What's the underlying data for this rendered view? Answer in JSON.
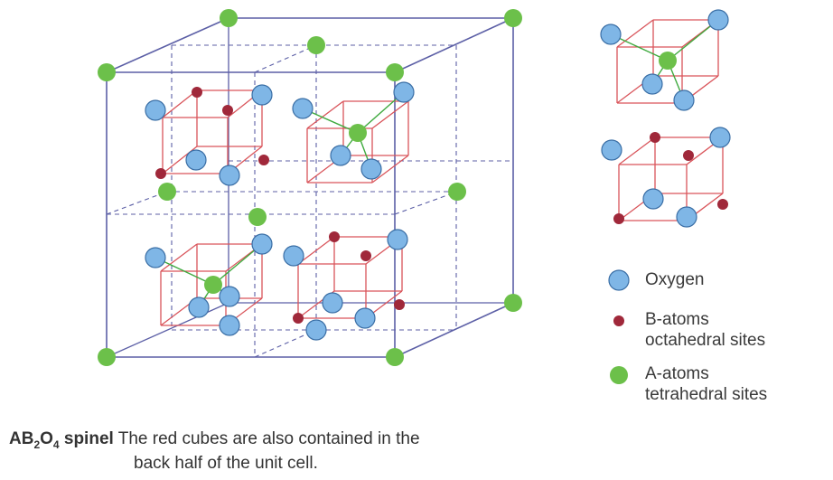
{
  "colors": {
    "frame": "#5c5fa6",
    "red_cube": "#d9545a",
    "bond": "#3faa3f",
    "oxygen_fill": "#7fb6e6",
    "oxygen_stroke": "#3a6ea5",
    "b_atom": "#a0283a",
    "a_atom": "#6cc04a"
  },
  "legend": {
    "oxygen": "Oxygen",
    "b_atoms_line1": "B-atoms",
    "b_atoms_line2": "octahedral sites",
    "a_atoms_line1": "A-atoms",
    "a_atoms_line2": "tetrahedral sites"
  },
  "caption": {
    "formula_a": "AB",
    "formula_sub1": "2",
    "formula_o": "O",
    "formula_sub2": "4",
    "formula_word": " spinel",
    "line1": "The red cubes are also contained in the",
    "line2": "back half of the unit cell."
  }
}
